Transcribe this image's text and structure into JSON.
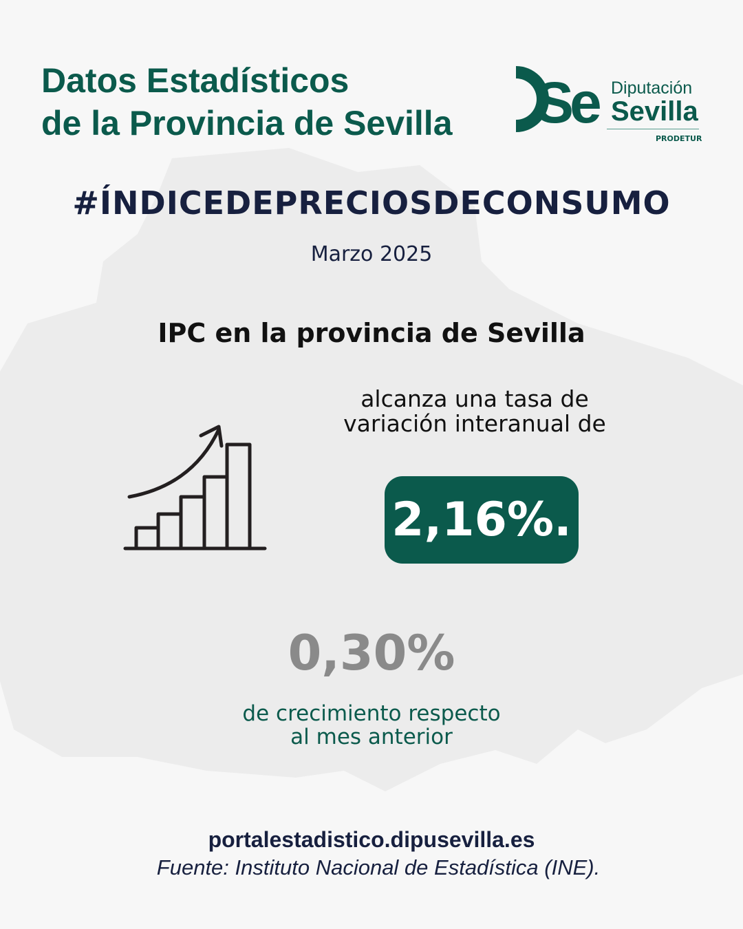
{
  "header": {
    "title_line1": "Datos Estadísticos",
    "title_line2": "de la Provincia de Sevilla"
  },
  "logo": {
    "mark": "Se",
    "line1": "Diputación",
    "line2": "Sevilla",
    "line3": "PRODETUR"
  },
  "hashtag": "#ÍNDICEDEPRECIOSDECONSUMO",
  "date": "Marzo 2025",
  "subtitle": "IPC en la provincia de Sevilla",
  "rate_text_line1": "alcanza una tasa de",
  "rate_text_line2": "variación interanual de",
  "annual_rate": "2,16%.",
  "monthly_rate": "0,30%",
  "monthly_text_line1": "de crecimiento respecto",
  "monthly_text_line2": "al mes anterior",
  "footer": {
    "url": "portalestadistico.dipusevilla.es",
    "source": "Fuente: Instituto Nacional de Estadística (INE)."
  },
  "colors": {
    "brand_green": "#0b5a4c",
    "navy": "#17203f",
    "background": "#f7f7f7",
    "map": "#ececec"
  },
  "icons": [
    "growth-chart-icon",
    "province-map-silhouette"
  ]
}
